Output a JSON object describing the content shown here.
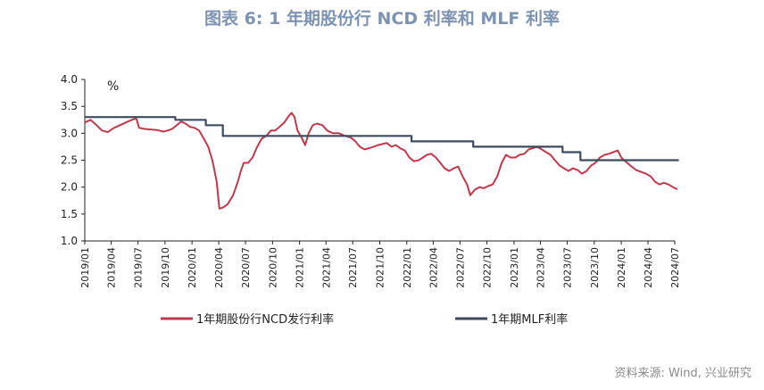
{
  "header": {
    "title": "图表 6:  1 年期股份行 NCD 利率和 MLF 利率"
  },
  "footer": {
    "source": "资料来源: Wind, 兴业研究"
  },
  "chart_data": {
    "type": "line",
    "title": "图表 6:  1 年期股份行 NCD 利率和 MLF 利率",
    "unit_label": "%",
    "ylim": [
      1.0,
      4.0
    ],
    "yticks": [
      "1.0",
      "1.5",
      "2.0",
      "2.5",
      "3.0",
      "3.5",
      "4.0"
    ],
    "xlim": [
      "2019-01",
      "2024-07"
    ],
    "xticks": [
      "2019/01",
      "2019/04",
      "2019/07",
      "2019/10",
      "2020/01",
      "2020/04",
      "2020/07",
      "2020/10",
      "2021/01",
      "2021/04",
      "2021/07",
      "2021/10",
      "2022/01",
      "2022/04",
      "2022/07",
      "2022/10",
      "2023/01",
      "2023/04",
      "2023/07",
      "2023/10",
      "2024/01",
      "2024/04",
      "2024/07"
    ],
    "grid": false,
    "legend_position": "bottom",
    "series": [
      {
        "name": "1年期股份行NCD发行利率",
        "color": "#c0394b",
        "points": [
          [
            "2019-01-01",
            3.2
          ],
          [
            "2019-01-20",
            3.25
          ],
          [
            "2019-02-10",
            3.15
          ],
          [
            "2019-03-01",
            3.05
          ],
          [
            "2019-03-20",
            3.02
          ],
          [
            "2019-04-10",
            3.1
          ],
          [
            "2019-05-01",
            3.15
          ],
          [
            "2019-05-20",
            3.2
          ],
          [
            "2019-06-10",
            3.25
          ],
          [
            "2019-06-25",
            3.28
          ],
          [
            "2019-07-05",
            3.1
          ],
          [
            "2019-07-25",
            3.08
          ],
          [
            "2019-08-15",
            3.07
          ],
          [
            "2019-09-05",
            3.06
          ],
          [
            "2019-09-25",
            3.03
          ],
          [
            "2019-10-10",
            3.05
          ],
          [
            "2019-10-25",
            3.08
          ],
          [
            "2019-11-10",
            3.15
          ],
          [
            "2019-11-25",
            3.22
          ],
          [
            "2019-12-10",
            3.18
          ],
          [
            "2019-12-25",
            3.12
          ],
          [
            "2020-01-10",
            3.1
          ],
          [
            "2020-01-25",
            3.05
          ],
          [
            "2020-02-10",
            2.9
          ],
          [
            "2020-02-25",
            2.75
          ],
          [
            "2020-03-10",
            2.5
          ],
          [
            "2020-03-25",
            2.1
          ],
          [
            "2020-04-03",
            1.6
          ],
          [
            "2020-04-15",
            1.62
          ],
          [
            "2020-05-01",
            1.68
          ],
          [
            "2020-05-20",
            1.85
          ],
          [
            "2020-06-05",
            2.1
          ],
          [
            "2020-06-15",
            2.3
          ],
          [
            "2020-06-25",
            2.45
          ],
          [
            "2020-07-10",
            2.45
          ],
          [
            "2020-07-25",
            2.55
          ],
          [
            "2020-08-10",
            2.75
          ],
          [
            "2020-08-25",
            2.9
          ],
          [
            "2020-09-10",
            2.95
          ],
          [
            "2020-09-25",
            3.05
          ],
          [
            "2020-10-10",
            3.05
          ],
          [
            "2020-10-25",
            3.12
          ],
          [
            "2020-11-10",
            3.2
          ],
          [
            "2020-11-25",
            3.32
          ],
          [
            "2020-12-05",
            3.38
          ],
          [
            "2020-12-15",
            3.3
          ],
          [
            "2020-12-25",
            3.05
          ],
          [
            "2021-01-10",
            2.9
          ],
          [
            "2021-01-20",
            2.78
          ],
          [
            "2021-02-01",
            3.0
          ],
          [
            "2021-02-15",
            3.15
          ],
          [
            "2021-03-01",
            3.18
          ],
          [
            "2021-03-20",
            3.15
          ],
          [
            "2021-04-05",
            3.05
          ],
          [
            "2021-04-25",
            3.0
          ],
          [
            "2021-05-15",
            3.0
          ],
          [
            "2021-06-05",
            2.95
          ],
          [
            "2021-06-25",
            2.92
          ],
          [
            "2021-07-10",
            2.85
          ],
          [
            "2021-07-25",
            2.75
          ],
          [
            "2021-08-10",
            2.7
          ],
          [
            "2021-08-25",
            2.72
          ],
          [
            "2021-09-10",
            2.75
          ],
          [
            "2021-09-25",
            2.78
          ],
          [
            "2021-10-10",
            2.8
          ],
          [
            "2021-10-25",
            2.82
          ],
          [
            "2021-11-10",
            2.75
          ],
          [
            "2021-11-25",
            2.78
          ],
          [
            "2021-12-10",
            2.72
          ],
          [
            "2021-12-25",
            2.68
          ],
          [
            "2022-01-10",
            2.55
          ],
          [
            "2022-01-25",
            2.48
          ],
          [
            "2022-02-10",
            2.5
          ],
          [
            "2022-02-25",
            2.55
          ],
          [
            "2022-03-10",
            2.6
          ],
          [
            "2022-03-25",
            2.62
          ],
          [
            "2022-04-10",
            2.55
          ],
          [
            "2022-04-25",
            2.45
          ],
          [
            "2022-05-10",
            2.35
          ],
          [
            "2022-05-25",
            2.3
          ],
          [
            "2022-06-10",
            2.35
          ],
          [
            "2022-06-25",
            2.38
          ],
          [
            "2022-07-10",
            2.2
          ],
          [
            "2022-07-25",
            2.05
          ],
          [
            "2022-08-05",
            1.85
          ],
          [
            "2022-08-20",
            1.95
          ],
          [
            "2022-09-05",
            2.0
          ],
          [
            "2022-09-20",
            1.98
          ],
          [
            "2022-10-05",
            2.02
          ],
          [
            "2022-10-20",
            2.05
          ],
          [
            "2022-11-05",
            2.2
          ],
          [
            "2022-11-20",
            2.45
          ],
          [
            "2022-12-05",
            2.6
          ],
          [
            "2022-12-20",
            2.55
          ],
          [
            "2023-01-05",
            2.55
          ],
          [
            "2023-01-20",
            2.6
          ],
          [
            "2023-02-05",
            2.62
          ],
          [
            "2023-02-20",
            2.7
          ],
          [
            "2023-03-05",
            2.72
          ],
          [
            "2023-03-20",
            2.75
          ],
          [
            "2023-04-05",
            2.7
          ],
          [
            "2023-04-20",
            2.65
          ],
          [
            "2023-05-05",
            2.6
          ],
          [
            "2023-05-20",
            2.5
          ],
          [
            "2023-06-05",
            2.4
          ],
          [
            "2023-06-20",
            2.35
          ],
          [
            "2023-07-05",
            2.3
          ],
          [
            "2023-07-20",
            2.35
          ],
          [
            "2023-08-05",
            2.32
          ],
          [
            "2023-08-20",
            2.25
          ],
          [
            "2023-09-05",
            2.3
          ],
          [
            "2023-09-20",
            2.4
          ],
          [
            "2023-10-05",
            2.45
          ],
          [
            "2023-10-20",
            2.55
          ],
          [
            "2023-11-05",
            2.6
          ],
          [
            "2023-11-20",
            2.62
          ],
          [
            "2023-12-05",
            2.65
          ],
          [
            "2023-12-20",
            2.68
          ],
          [
            "2024-01-01",
            2.55
          ],
          [
            "2024-01-15",
            2.48
          ],
          [
            "2024-02-01",
            2.4
          ],
          [
            "2024-02-20",
            2.32
          ],
          [
            "2024-03-10",
            2.28
          ],
          [
            "2024-03-25",
            2.25
          ],
          [
            "2024-04-10",
            2.2
          ],
          [
            "2024-04-25",
            2.1
          ],
          [
            "2024-05-10",
            2.05
          ],
          [
            "2024-05-25",
            2.08
          ],
          [
            "2024-06-10",
            2.05
          ],
          [
            "2024-06-25",
            2.0
          ],
          [
            "2024-07-10",
            1.96
          ]
        ]
      },
      {
        "name": "1年期MLF利率",
        "color": "#3e4a5e",
        "points": [
          [
            "2019-01-01",
            3.3
          ],
          [
            "2019-11-05",
            3.3
          ],
          [
            "2019-11-05",
            3.25
          ],
          [
            "2020-02-17",
            3.25
          ],
          [
            "2020-02-17",
            3.15
          ],
          [
            "2020-04-15",
            3.15
          ],
          [
            "2020-04-15",
            2.95
          ],
          [
            "2022-01-17",
            2.95
          ],
          [
            "2022-01-17",
            2.85
          ],
          [
            "2022-08-15",
            2.85
          ],
          [
            "2022-08-15",
            2.75
          ],
          [
            "2023-06-15",
            2.75
          ],
          [
            "2023-06-15",
            2.65
          ],
          [
            "2023-08-15",
            2.65
          ],
          [
            "2023-08-15",
            2.5
          ],
          [
            "2024-07-15",
            2.5
          ]
        ]
      }
    ]
  }
}
